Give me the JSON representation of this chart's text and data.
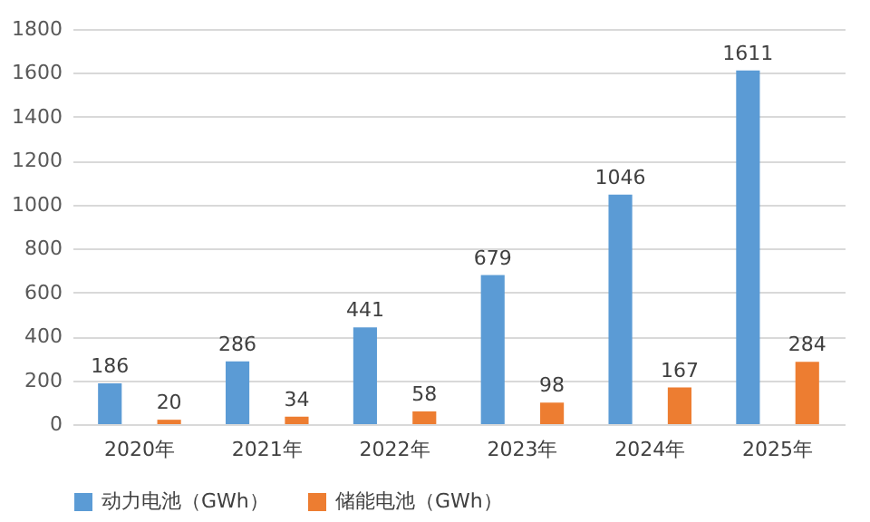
{
  "chart_data": {
    "type": "bar",
    "categories": [
      "2020年",
      "2021年",
      "2022年",
      "2023年",
      "2024年",
      "2025年"
    ],
    "series": [
      {
        "name": "动力电池（GWh）",
        "color": "#5b9bd5",
        "values": [
          186,
          286,
          441,
          679,
          1046,
          1611
        ]
      },
      {
        "name": "储能电池（GWh）",
        "color": "#ed7d31",
        "values": [
          20,
          34,
          58,
          98,
          167,
          284
        ]
      }
    ],
    "ylim": [
      0,
      1800
    ],
    "yticks": [
      0,
      200,
      400,
      600,
      800,
      1000,
      1200,
      1400,
      1600,
      1800
    ],
    "grid": "y",
    "legend": "bottom",
    "data_labels": true
  }
}
